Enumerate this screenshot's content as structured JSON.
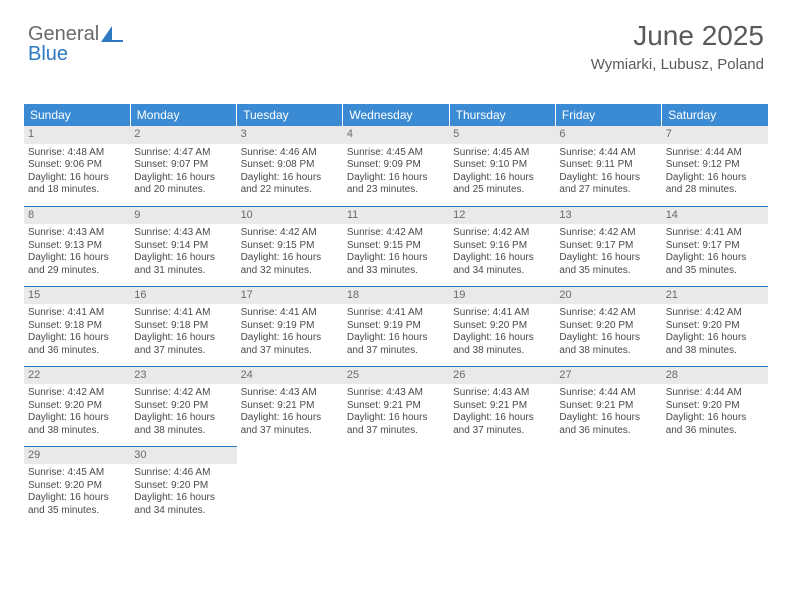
{
  "logo": {
    "line1": "General",
    "line2": "Blue"
  },
  "header": {
    "title": "June 2025",
    "location": "Wymiarki, Lubusz, Poland"
  },
  "colors": {
    "header_bg": "#3b8bd4",
    "header_text": "#ffffff",
    "daynum_bg": "#e9e9e9",
    "text": "#4a4a4a",
    "rule": "#2f78c2",
    "logo_gray": "#6a6a6a",
    "logo_blue": "#2f78c2"
  },
  "typography": {
    "title_fontsize": 28,
    "location_fontsize": 15,
    "dayhdr_fontsize": 12,
    "daynum_fontsize": 11,
    "body_fontsize": 10
  },
  "dayHeaders": [
    "Sunday",
    "Monday",
    "Tuesday",
    "Wednesday",
    "Thursday",
    "Friday",
    "Saturday"
  ],
  "labels": {
    "sunrise": "Sunrise: ",
    "sunset": "Sunset: ",
    "daylight": "Daylight: "
  },
  "weeks": [
    [
      {
        "n": 1,
        "sunrise": "4:48 AM",
        "sunset": "9:06 PM",
        "daylight": "16 hours and 18 minutes."
      },
      {
        "n": 2,
        "sunrise": "4:47 AM",
        "sunset": "9:07 PM",
        "daylight": "16 hours and 20 minutes."
      },
      {
        "n": 3,
        "sunrise": "4:46 AM",
        "sunset": "9:08 PM",
        "daylight": "16 hours and 22 minutes."
      },
      {
        "n": 4,
        "sunrise": "4:45 AM",
        "sunset": "9:09 PM",
        "daylight": "16 hours and 23 minutes."
      },
      {
        "n": 5,
        "sunrise": "4:45 AM",
        "sunset": "9:10 PM",
        "daylight": "16 hours and 25 minutes."
      },
      {
        "n": 6,
        "sunrise": "4:44 AM",
        "sunset": "9:11 PM",
        "daylight": "16 hours and 27 minutes."
      },
      {
        "n": 7,
        "sunrise": "4:44 AM",
        "sunset": "9:12 PM",
        "daylight": "16 hours and 28 minutes."
      }
    ],
    [
      {
        "n": 8,
        "sunrise": "4:43 AM",
        "sunset": "9:13 PM",
        "daylight": "16 hours and 29 minutes."
      },
      {
        "n": 9,
        "sunrise": "4:43 AM",
        "sunset": "9:14 PM",
        "daylight": "16 hours and 31 minutes."
      },
      {
        "n": 10,
        "sunrise": "4:42 AM",
        "sunset": "9:15 PM",
        "daylight": "16 hours and 32 minutes."
      },
      {
        "n": 11,
        "sunrise": "4:42 AM",
        "sunset": "9:15 PM",
        "daylight": "16 hours and 33 minutes."
      },
      {
        "n": 12,
        "sunrise": "4:42 AM",
        "sunset": "9:16 PM",
        "daylight": "16 hours and 34 minutes."
      },
      {
        "n": 13,
        "sunrise": "4:42 AM",
        "sunset": "9:17 PM",
        "daylight": "16 hours and 35 minutes."
      },
      {
        "n": 14,
        "sunrise": "4:41 AM",
        "sunset": "9:17 PM",
        "daylight": "16 hours and 35 minutes."
      }
    ],
    [
      {
        "n": 15,
        "sunrise": "4:41 AM",
        "sunset": "9:18 PM",
        "daylight": "16 hours and 36 minutes."
      },
      {
        "n": 16,
        "sunrise": "4:41 AM",
        "sunset": "9:18 PM",
        "daylight": "16 hours and 37 minutes."
      },
      {
        "n": 17,
        "sunrise": "4:41 AM",
        "sunset": "9:19 PM",
        "daylight": "16 hours and 37 minutes."
      },
      {
        "n": 18,
        "sunrise": "4:41 AM",
        "sunset": "9:19 PM",
        "daylight": "16 hours and 37 minutes."
      },
      {
        "n": 19,
        "sunrise": "4:41 AM",
        "sunset": "9:20 PM",
        "daylight": "16 hours and 38 minutes."
      },
      {
        "n": 20,
        "sunrise": "4:42 AM",
        "sunset": "9:20 PM",
        "daylight": "16 hours and 38 minutes."
      },
      {
        "n": 21,
        "sunrise": "4:42 AM",
        "sunset": "9:20 PM",
        "daylight": "16 hours and 38 minutes."
      }
    ],
    [
      {
        "n": 22,
        "sunrise": "4:42 AM",
        "sunset": "9:20 PM",
        "daylight": "16 hours and 38 minutes."
      },
      {
        "n": 23,
        "sunrise": "4:42 AM",
        "sunset": "9:20 PM",
        "daylight": "16 hours and 38 minutes."
      },
      {
        "n": 24,
        "sunrise": "4:43 AM",
        "sunset": "9:21 PM",
        "daylight": "16 hours and 37 minutes."
      },
      {
        "n": 25,
        "sunrise": "4:43 AM",
        "sunset": "9:21 PM",
        "daylight": "16 hours and 37 minutes."
      },
      {
        "n": 26,
        "sunrise": "4:43 AM",
        "sunset": "9:21 PM",
        "daylight": "16 hours and 37 minutes."
      },
      {
        "n": 27,
        "sunrise": "4:44 AM",
        "sunset": "9:21 PM",
        "daylight": "16 hours and 36 minutes."
      },
      {
        "n": 28,
        "sunrise": "4:44 AM",
        "sunset": "9:20 PM",
        "daylight": "16 hours and 36 minutes."
      }
    ],
    [
      {
        "n": 29,
        "sunrise": "4:45 AM",
        "sunset": "9:20 PM",
        "daylight": "16 hours and 35 minutes."
      },
      {
        "n": 30,
        "sunrise": "4:46 AM",
        "sunset": "9:20 PM",
        "daylight": "16 hours and 34 minutes."
      },
      null,
      null,
      null,
      null,
      null
    ]
  ]
}
